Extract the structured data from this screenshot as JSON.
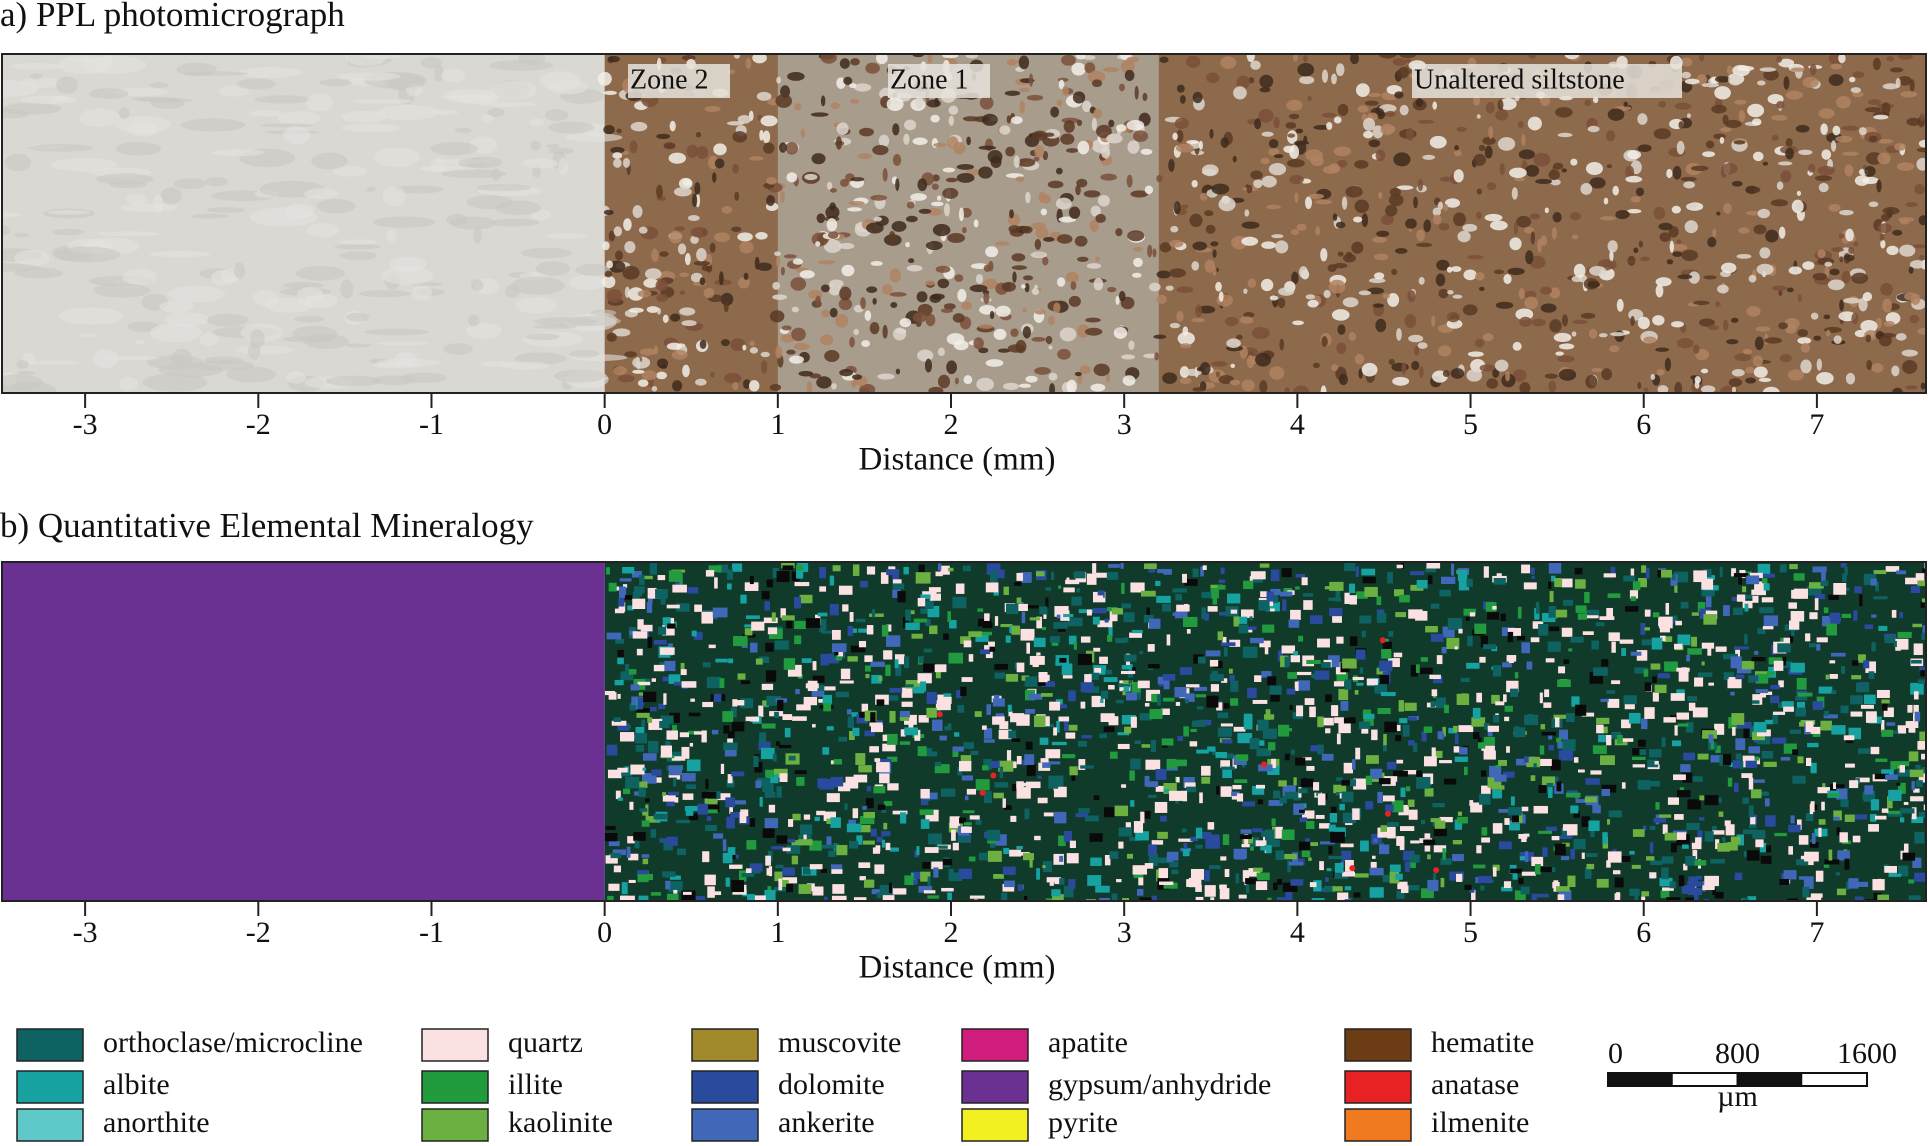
{
  "panels": [
    {
      "title": "a) PPL photomicrograph",
      "kind": "ppl",
      "xlim": [
        -3.48,
        7.63
      ],
      "xticks": [
        -3,
        -2,
        -1,
        0,
        1,
        2,
        3,
        4,
        5,
        6,
        7
      ],
      "xlabel": "Distance (mm)",
      "annotations": [
        "Zone 2",
        "Zone 1",
        "Unaltered siltstone"
      ]
    },
    {
      "title": "b) Quantitative  Elemental Mineralogy",
      "kind": "qemscan",
      "xlim": [
        -3.48,
        7.63
      ],
      "xticks": [
        -3,
        -2,
        -1,
        0,
        1,
        2,
        3,
        4,
        5,
        6,
        7
      ],
      "xlabel": "Distance (mm)"
    }
  ],
  "legend": [
    {
      "name": "orthoclase/microcline",
      "color": "#0f6262"
    },
    {
      "name": "albite",
      "color": "#17a2a2"
    },
    {
      "name": "anorthite",
      "color": "#5fc9c9"
    },
    {
      "name": "quartz",
      "color": "#fbe1e1"
    },
    {
      "name": "illite",
      "color": "#229a3e"
    },
    {
      "name": "kaolinite",
      "color": "#6cb042"
    },
    {
      "name": "muscovite",
      "color": "#a18a2c"
    },
    {
      "name": "dolomite",
      "color": "#2a4a9e"
    },
    {
      "name": "ankerite",
      "color": "#4168b8"
    },
    {
      "name": "apatite",
      "color": "#d01c7c"
    },
    {
      "name": "gypsum/anhydride",
      "color": "#6a3092"
    },
    {
      "name": "pyrite",
      "color": "#f2f020"
    },
    {
      "name": "hematite",
      "color": "#6c3c14"
    },
    {
      "name": "anatase",
      "color": "#e82222"
    },
    {
      "name": "ilmenite",
      "color": "#f07a20"
    }
  ],
  "scale_bar": {
    "ticks": [
      0,
      800,
      1600
    ],
    "unit": "µm"
  }
}
